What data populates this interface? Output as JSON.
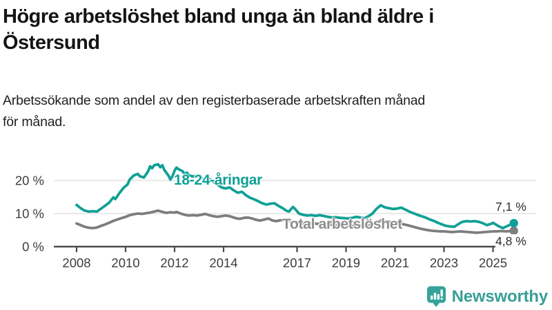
{
  "header": {
    "title_line1": "Högre arbetslöshet bland unga än bland äldre i",
    "title_line2": "Östersund",
    "subtitle_line1": "Arbetssökande som andel av den registerbaserade arbetskraften månad",
    "subtitle_line2": "för månad."
  },
  "chart_data": {
    "type": "line",
    "title": "Högre arbetslöshet bland unga än bland äldre i Östersund",
    "subtitle": "Arbetssökande som andel av den registerbaserade arbetskraften månad för månad.",
    "unit": "%",
    "xlim": [
      2007.9,
      2025.95
    ],
    "ylim": [
      0,
      26
    ],
    "grid": "horizontal",
    "grid_color": "#dcdcdc",
    "axis_color": "#4b4b4b",
    "tick_label_color": "#3d3d3d",
    "x_tick_years": [
      2008,
      2010,
      2012,
      2014,
      2017,
      2019,
      2021,
      2023,
      2025
    ],
    "x_tick_labels": [
      "2008",
      "2010",
      "2012",
      "2014",
      "2017",
      "2019",
      "2021",
      "2023",
      "2025"
    ],
    "y_tick_values": [
      0,
      10,
      20
    ],
    "y_tick_labels": [
      "0 %",
      "10 %",
      "20 %"
    ],
    "series": [
      {
        "id": "total",
        "name": "Total arbetslöshet",
        "color": "#7d7d7d",
        "label_color": "#8e8e8e",
        "end_label": "4,8 %",
        "end_value": 4.8,
        "points": [
          [
            2008.0,
            7.0
          ],
          [
            2008.17,
            6.5
          ],
          [
            2008.33,
            6.0
          ],
          [
            2008.5,
            5.7
          ],
          [
            2008.67,
            5.6
          ],
          [
            2008.83,
            5.8
          ],
          [
            2009.0,
            6.3
          ],
          [
            2009.17,
            6.7
          ],
          [
            2009.33,
            7.2
          ],
          [
            2009.5,
            7.8
          ],
          [
            2009.67,
            8.2
          ],
          [
            2009.83,
            8.6
          ],
          [
            2010.0,
            9.0
          ],
          [
            2010.17,
            9.5
          ],
          [
            2010.33,
            9.8
          ],
          [
            2010.5,
            10.0
          ],
          [
            2010.67,
            9.9
          ],
          [
            2010.83,
            10.1
          ],
          [
            2011.0,
            10.3
          ],
          [
            2011.17,
            10.6
          ],
          [
            2011.33,
            10.9
          ],
          [
            2011.5,
            10.5
          ],
          [
            2011.67,
            10.2
          ],
          [
            2011.83,
            10.4
          ],
          [
            2012.0,
            10.3
          ],
          [
            2012.08,
            10.5
          ],
          [
            2012.25,
            10.0
          ],
          [
            2012.42,
            9.6
          ],
          [
            2012.58,
            9.4
          ],
          [
            2012.75,
            9.5
          ],
          [
            2012.92,
            9.4
          ],
          [
            2013.08,
            9.6
          ],
          [
            2013.25,
            9.9
          ],
          [
            2013.42,
            9.5
          ],
          [
            2013.58,
            9.2
          ],
          [
            2013.75,
            9.0
          ],
          [
            2013.92,
            9.2
          ],
          [
            2014.08,
            9.4
          ],
          [
            2014.25,
            9.2
          ],
          [
            2014.5,
            8.6
          ],
          [
            2014.67,
            8.4
          ],
          [
            2014.83,
            8.7
          ],
          [
            2015.0,
            8.8
          ],
          [
            2015.17,
            8.5
          ],
          [
            2015.33,
            8.1
          ],
          [
            2015.5,
            7.9
          ],
          [
            2015.67,
            8.2
          ],
          [
            2015.83,
            8.5
          ],
          [
            2016.0,
            7.9
          ],
          [
            2016.17,
            7.7
          ],
          [
            2016.33,
            8.0
          ],
          [
            2016.5,
            8.1
          ],
          [
            2016.67,
            7.8
          ],
          [
            2016.83,
            7.6
          ],
          [
            2017.0,
            7.3
          ],
          [
            2017.17,
            7.0
          ],
          [
            2017.33,
            6.9
          ],
          [
            2017.5,
            7.1
          ],
          [
            2017.67,
            7.0
          ],
          [
            2017.83,
            6.9
          ],
          [
            2018.0,
            6.8
          ],
          [
            2018.25,
            6.7
          ],
          [
            2018.5,
            6.6
          ],
          [
            2018.75,
            6.5
          ],
          [
            2019.0,
            6.4
          ],
          [
            2019.25,
            6.3
          ],
          [
            2019.5,
            6.2
          ],
          [
            2019.75,
            6.3
          ],
          [
            2020.0,
            6.6
          ],
          [
            2020.25,
            7.4
          ],
          [
            2020.42,
            7.9
          ],
          [
            2020.58,
            7.7
          ],
          [
            2020.75,
            7.5
          ],
          [
            2021.0,
            7.2
          ],
          [
            2021.25,
            6.9
          ],
          [
            2021.5,
            6.5
          ],
          [
            2021.75,
            6.0
          ],
          [
            2022.0,
            5.5
          ],
          [
            2022.25,
            5.1
          ],
          [
            2022.5,
            4.8
          ],
          [
            2022.67,
            4.7
          ],
          [
            2022.83,
            4.6
          ],
          [
            2023.0,
            4.6
          ],
          [
            2023.17,
            4.5
          ],
          [
            2023.33,
            4.4
          ],
          [
            2023.5,
            4.5
          ],
          [
            2023.67,
            4.6
          ],
          [
            2023.83,
            4.5
          ],
          [
            2024.0,
            4.4
          ],
          [
            2024.17,
            4.3
          ],
          [
            2024.33,
            4.2
          ],
          [
            2024.5,
            4.3
          ],
          [
            2024.67,
            4.4
          ],
          [
            2024.83,
            4.5
          ],
          [
            2025.0,
            4.6
          ],
          [
            2025.17,
            4.6
          ],
          [
            2025.33,
            4.7
          ],
          [
            2025.55,
            4.6
          ],
          [
            2025.85,
            4.8
          ]
        ]
      },
      {
        "id": "young",
        "name": "18-24-åringar",
        "color": "#10a096",
        "label_color": "#10a096",
        "end_label": "7,1 %",
        "end_value": 7.1,
        "points": [
          [
            2008.0,
            12.6
          ],
          [
            2008.17,
            11.6
          ],
          [
            2008.33,
            10.9
          ],
          [
            2008.5,
            10.6
          ],
          [
            2008.67,
            10.7
          ],
          [
            2008.83,
            10.6
          ],
          [
            2009.0,
            11.5
          ],
          [
            2009.17,
            12.4
          ],
          [
            2009.33,
            13.3
          ],
          [
            2009.5,
            14.9
          ],
          [
            2009.58,
            14.4
          ],
          [
            2009.75,
            16.2
          ],
          [
            2009.92,
            17.8
          ],
          [
            2010.08,
            18.8
          ],
          [
            2010.17,
            20.3
          ],
          [
            2010.33,
            21.5
          ],
          [
            2010.5,
            22.0
          ],
          [
            2010.58,
            21.3
          ],
          [
            2010.75,
            20.9
          ],
          [
            2010.92,
            22.8
          ],
          [
            2011.0,
            24.3
          ],
          [
            2011.08,
            23.7
          ],
          [
            2011.17,
            24.6
          ],
          [
            2011.33,
            24.9
          ],
          [
            2011.42,
            24.0
          ],
          [
            2011.5,
            24.6
          ],
          [
            2011.58,
            23.2
          ],
          [
            2011.75,
            21.5
          ],
          [
            2011.83,
            20.3
          ],
          [
            2011.92,
            21.4
          ],
          [
            2012.0,
            23.0
          ],
          [
            2012.08,
            23.9
          ],
          [
            2012.17,
            23.4
          ],
          [
            2012.33,
            22.8
          ],
          [
            2012.42,
            21.8
          ],
          [
            2012.5,
            22.4
          ],
          [
            2012.58,
            21.6
          ],
          [
            2012.75,
            21.2
          ],
          [
            2012.92,
            21.6
          ],
          [
            2013.08,
            20.8
          ],
          [
            2013.25,
            20.2
          ],
          [
            2013.42,
            20.5
          ],
          [
            2013.58,
            19.6
          ],
          [
            2013.75,
            18.8
          ],
          [
            2013.92,
            17.9
          ],
          [
            2014.08,
            17.6
          ],
          [
            2014.25,
            17.9
          ],
          [
            2014.42,
            17.0
          ],
          [
            2014.58,
            16.3
          ],
          [
            2014.75,
            16.6
          ],
          [
            2014.92,
            15.5
          ],
          [
            2015.08,
            14.8
          ],
          [
            2015.25,
            14.3
          ],
          [
            2015.42,
            13.7
          ],
          [
            2015.58,
            13.1
          ],
          [
            2015.75,
            12.7
          ],
          [
            2015.92,
            13.0
          ],
          [
            2016.08,
            13.1
          ],
          [
            2016.25,
            12.3
          ],
          [
            2016.42,
            11.6
          ],
          [
            2016.58,
            10.8
          ],
          [
            2016.67,
            10.6
          ],
          [
            2016.83,
            12.0
          ],
          [
            2016.92,
            11.4
          ],
          [
            2017.08,
            10.0
          ],
          [
            2017.25,
            9.6
          ],
          [
            2017.42,
            9.4
          ],
          [
            2017.58,
            9.5
          ],
          [
            2017.75,
            9.3
          ],
          [
            2017.92,
            9.5
          ],
          [
            2018.08,
            9.3
          ],
          [
            2018.25,
            9.0
          ],
          [
            2018.42,
            8.8
          ],
          [
            2018.58,
            8.9
          ],
          [
            2018.75,
            8.7
          ],
          [
            2018.92,
            8.6
          ],
          [
            2019.08,
            8.5
          ],
          [
            2019.25,
            8.7
          ],
          [
            2019.42,
            9.0
          ],
          [
            2019.58,
            8.8
          ],
          [
            2019.75,
            8.6
          ],
          [
            2019.92,
            9.2
          ],
          [
            2020.08,
            10.0
          ],
          [
            2020.25,
            11.5
          ],
          [
            2020.42,
            12.5
          ],
          [
            2020.5,
            12.2
          ],
          [
            2020.58,
            11.9
          ],
          [
            2020.75,
            11.6
          ],
          [
            2020.92,
            11.4
          ],
          [
            2021.08,
            11.5
          ],
          [
            2021.25,
            11.8
          ],
          [
            2021.42,
            11.2
          ],
          [
            2021.58,
            10.6
          ],
          [
            2021.75,
            10.1
          ],
          [
            2021.92,
            9.6
          ],
          [
            2022.08,
            9.2
          ],
          [
            2022.25,
            8.8
          ],
          [
            2022.42,
            8.2
          ],
          [
            2022.58,
            7.8
          ],
          [
            2022.75,
            7.2
          ],
          [
            2022.92,
            6.7
          ],
          [
            2023.08,
            6.3
          ],
          [
            2023.25,
            6.1
          ],
          [
            2023.42,
            6.0
          ],
          [
            2023.58,
            6.8
          ],
          [
            2023.75,
            7.5
          ],
          [
            2023.92,
            7.7
          ],
          [
            2024.08,
            7.6
          ],
          [
            2024.25,
            7.7
          ],
          [
            2024.42,
            7.5
          ],
          [
            2024.58,
            7.1
          ],
          [
            2024.75,
            6.5
          ],
          [
            2024.92,
            6.9
          ],
          [
            2025.0,
            7.2
          ],
          [
            2025.2,
            6.3
          ],
          [
            2025.4,
            5.6
          ],
          [
            2025.6,
            6.3
          ],
          [
            2025.85,
            7.1
          ]
        ]
      }
    ]
  },
  "footer": {
    "brand": "Newsworthy",
    "brand_color": "#389e97",
    "icon_color": "#35a39a"
  }
}
